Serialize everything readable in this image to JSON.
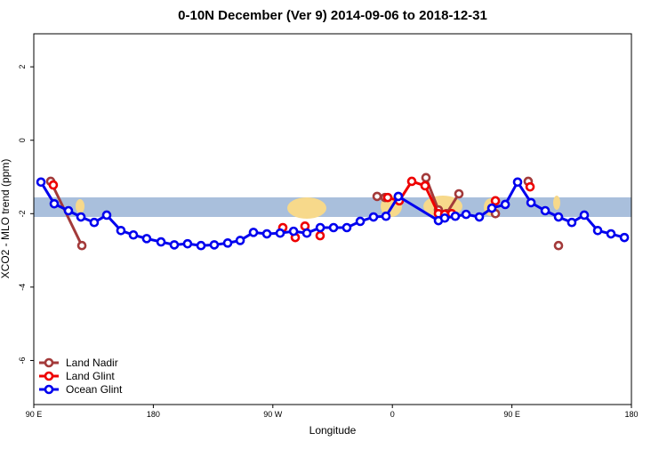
{
  "chart_data": {
    "type": "line",
    "title": "0-10N December (Ver 9)   2014-09-06 to 2018-12-31",
    "x_label": "Longitude",
    "y_label": "XCO2 - MLO trend (ppm)",
    "xlim": [
      90,
      540
    ],
    "ylim": [
      -7.2,
      2.9
    ],
    "xticks": [
      {
        "value": 90,
        "label": "90 E"
      },
      180,
      {
        "value": 270,
        "label": "90 W"
      },
      {
        "value": 360,
        "label": "0"
      },
      {
        "value": 450,
        "label": "90 E"
      },
      {
        "value": 540,
        "label": "180"
      }
    ],
    "yticks": [
      -6,
      -4,
      -2,
      0,
      2
    ],
    "legend": "bottom-left",
    "series": [
      {
        "name": "Land Nadir",
        "color": "#a33a3a",
        "x": [
          102.7,
          126.2,
          null,
          348.5,
          354.5,
          null,
          385.3,
          394.7,
          400.7,
          410.1,
          null,
          437.6,
          null,
          462.3,
          null,
          485.1
        ],
        "values": [
          -1.12,
          -2.87,
          null,
          -1.53,
          -1.56,
          null,
          -1.02,
          -1.9,
          -2.0,
          -1.46,
          null,
          -2.0,
          null,
          -1.12,
          null,
          -2.87
        ]
      },
      {
        "name": "Land Glint",
        "color": "#ee0000",
        "x": [
          104.7,
          null,
          277.5,
          null,
          286.9,
          null,
          294.2,
          null,
          305.6,
          null,
          356.5,
          365.2,
          374.6,
          384.6,
          394.7,
          399.4,
          404.7,
          null,
          437.6,
          null,
          463.7
        ],
        "values": [
          -1.22,
          null,
          -2.38,
          null,
          -2.65,
          null,
          -2.34,
          null,
          -2.6,
          null,
          -1.56,
          -1.65,
          -1.12,
          -1.24,
          -2.0,
          -2.02,
          -2.0,
          null,
          -1.65,
          null,
          -1.27
        ]
      },
      {
        "name": "Ocean Glint",
        "color": "#0000ee",
        "x": [
          95.4,
          105.4,
          116.1,
          125.5,
          135.5,
          144.9,
          155.6,
          165,
          175,
          185.8,
          195.8,
          205.8,
          215.9,
          225.9,
          236,
          245.4,
          255.4,
          265.5,
          275.5,
          285.6,
          295.6,
          305.7,
          315.7,
          325.7,
          335.8,
          345.8,
          355.2,
          364.5,
          394.7,
          399.4,
          407.4,
          415.5,
          425.5,
          434.9,
          445,
          454.3,
          464.4,
          475.1,
          485.1,
          495.1,
          504.5,
          514.6,
          524.6,
          534.7
        ],
        "values": [
          -1.14,
          -1.73,
          -1.92,
          -2.09,
          -2.24,
          -2.04,
          -2.46,
          -2.58,
          -2.68,
          -2.77,
          -2.85,
          -2.82,
          -2.87,
          -2.85,
          -2.8,
          -2.73,
          -2.51,
          -2.55,
          -2.53,
          -2.48,
          -2.53,
          -2.38,
          -2.38,
          -2.38,
          -2.21,
          -2.09,
          -2.07,
          -1.53,
          -2.19,
          -2.12,
          -2.07,
          -2.02,
          -2.09,
          -1.85,
          -1.75,
          -1.14,
          -1.7,
          -1.92,
          -2.09,
          -2.24,
          -2.04,
          -2.46,
          -2.55,
          -2.65
        ]
      }
    ]
  }
}
